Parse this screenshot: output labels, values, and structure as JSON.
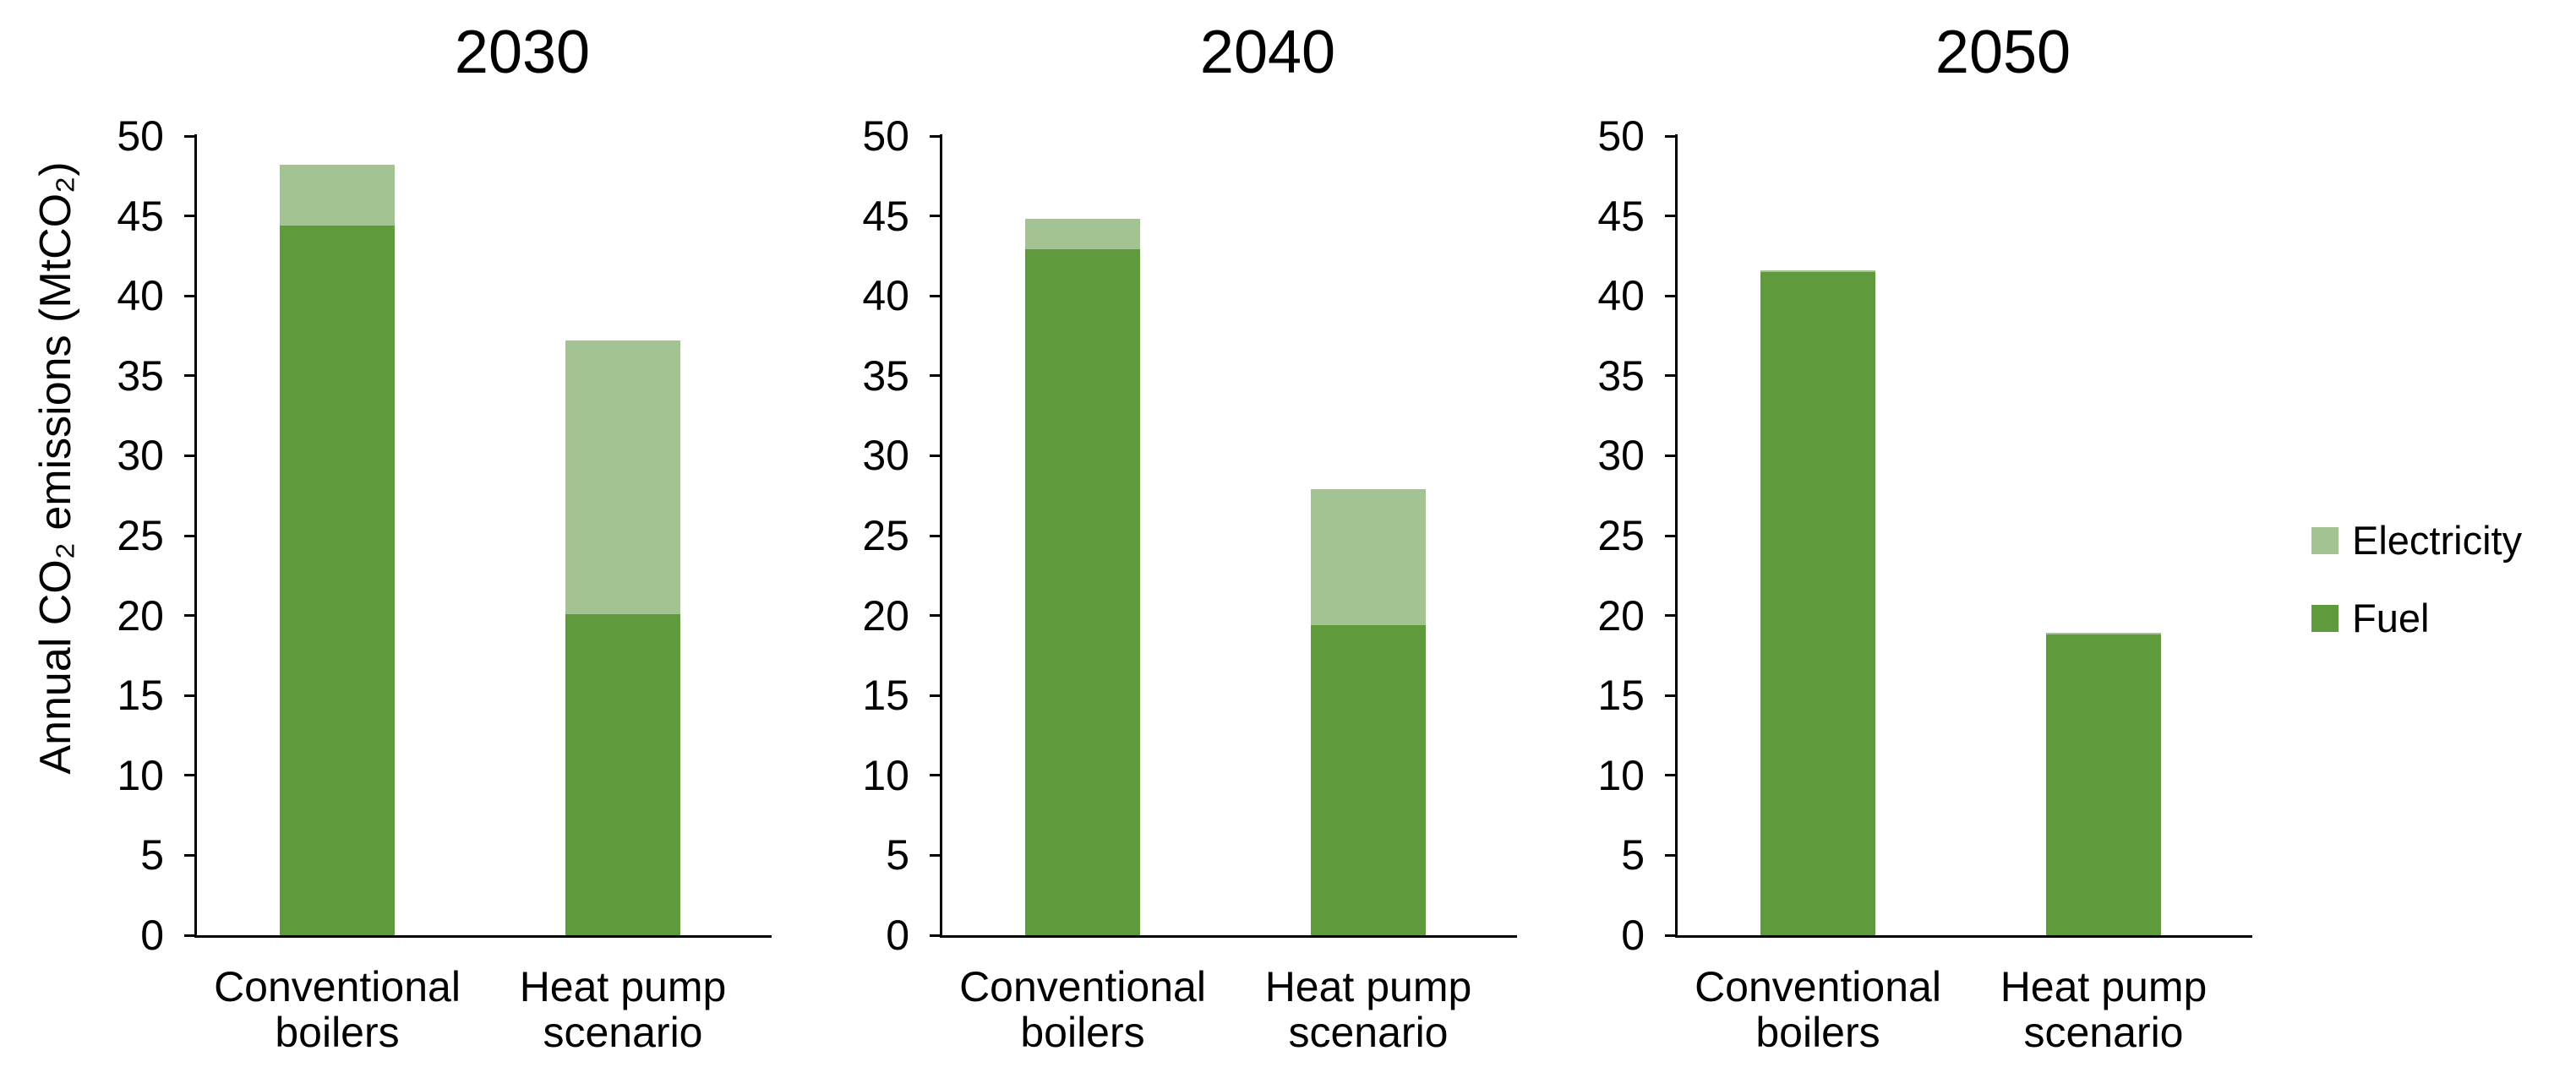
{
  "figure": {
    "background": "#ffffff",
    "text_color": "#000000",
    "ylabel": "Annual CO₂ emissions (MtCO₂)"
  },
  "legend": {
    "position": "right",
    "items": [
      {
        "label": "Electricity",
        "color": "#A3C492"
      },
      {
        "label": "Fuel",
        "color": "#5F9A3D"
      }
    ]
  },
  "chart_data": [
    {
      "type": "bar",
      "stacked": true,
      "title": "2030",
      "categories": [
        "Conventional boilers",
        "Heat pump scenario"
      ],
      "series": [
        {
          "name": "Fuel",
          "color": "#5F9A3D",
          "values": [
            44.4,
            20.1
          ]
        },
        {
          "name": "Electricity",
          "color": "#A3C492",
          "values": [
            3.8,
            17.1
          ]
        }
      ],
      "ylim": [
        0,
        50
      ],
      "yticks": [
        0,
        5,
        10,
        15,
        20,
        25,
        30,
        35,
        40,
        45,
        50
      ],
      "grid": false
    },
    {
      "type": "bar",
      "stacked": true,
      "title": "2040",
      "categories": [
        "Conventional boilers",
        "Heat pump scenario"
      ],
      "series": [
        {
          "name": "Fuel",
          "color": "#5F9A3D",
          "values": [
            42.9,
            19.4
          ]
        },
        {
          "name": "Electricity",
          "color": "#A3C492",
          "values": [
            1.9,
            8.5
          ]
        }
      ],
      "ylim": [
        0,
        50
      ],
      "yticks": [
        0,
        5,
        10,
        15,
        20,
        25,
        30,
        35,
        40,
        45,
        50
      ],
      "grid": false
    },
    {
      "type": "bar",
      "stacked": true,
      "title": "2050",
      "categories": [
        "Conventional boilers",
        "Heat pump scenario"
      ],
      "series": [
        {
          "name": "Fuel",
          "color": "#5F9A3D",
          "values": [
            41.5,
            18.8
          ]
        },
        {
          "name": "Electricity",
          "color": "#A3C492",
          "values": [
            0.1,
            0.1
          ]
        }
      ],
      "ylim": [
        0,
        50
      ],
      "yticks": [
        0,
        5,
        10,
        15,
        20,
        25,
        30,
        35,
        40,
        45,
        50
      ],
      "grid": false
    }
  ]
}
